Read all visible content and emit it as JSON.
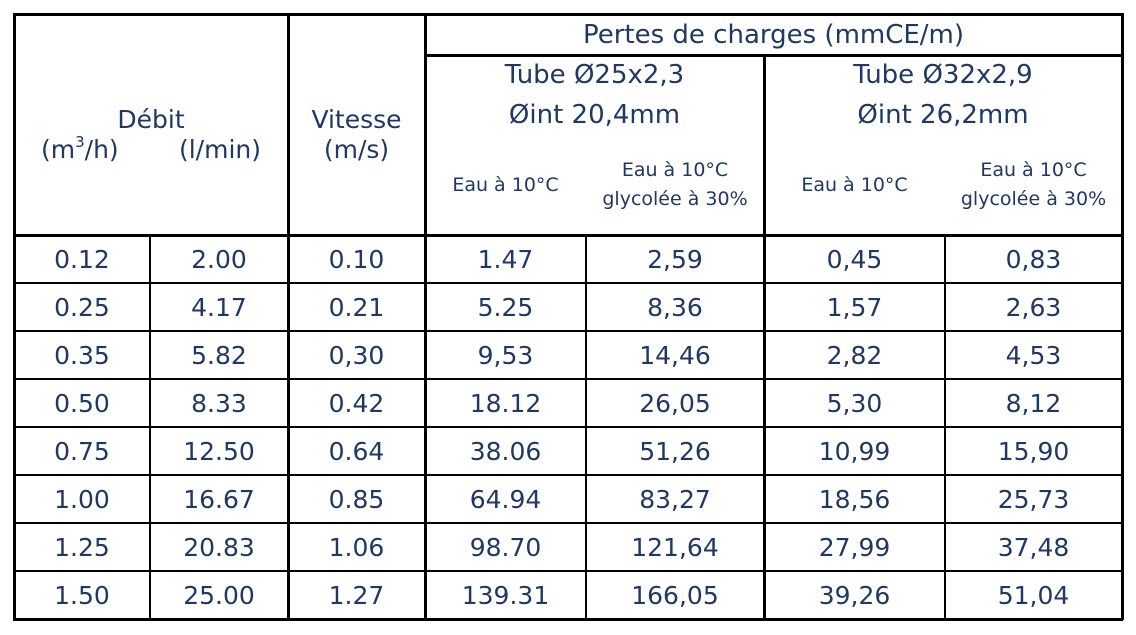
{
  "header": {
    "debit": {
      "label": "Débit",
      "unit_m3h_prefix": "(m",
      "unit_m3h_sup": "3",
      "unit_m3h_suffix": "/h)",
      "unit_lmin": "(l/min)"
    },
    "vitesse": {
      "label": "Vitesse",
      "unit": "(m/s)"
    },
    "pertes": "Pertes de charges (mmCE/m)",
    "tube1": {
      "line1": "Tube Ø25x2,3",
      "line2": "Øint 20,4mm"
    },
    "tube2": {
      "line1": "Tube Ø32x2,9",
      "line2": "Øint 26,2mm"
    },
    "eau": "Eau à 10°C",
    "eau_glycol_line1": "Eau à 10°C",
    "eau_glycol_line2": "glycolée à  30%"
  },
  "rows": [
    [
      "0.12",
      "2.00",
      "0.10",
      "1.47",
      "2,59",
      "0,45",
      "0,83"
    ],
    [
      "0.25",
      "4.17",
      "0.21",
      "5.25",
      "8,36",
      "1,57",
      "2,63"
    ],
    [
      "0.35",
      "5.82",
      "0,30",
      "9,53",
      "14,46",
      "2,82",
      "4,53"
    ],
    [
      "0.50",
      "8.33",
      "0.42",
      "18.12",
      "26,05",
      "5,30",
      "8,12"
    ],
    [
      "0.75",
      "12.50",
      "0.64",
      "38.06",
      "51,26",
      "10,99",
      "15,90"
    ],
    [
      "1.00",
      "16.67",
      "0.85",
      "64.94",
      "83,27",
      "18,56",
      "25,73"
    ],
    [
      "1.25",
      "20.83",
      "1.06",
      "98.70",
      "121,64",
      "27,99",
      "37,48"
    ],
    [
      "1.50",
      "25.00",
      "1.27",
      "139.31",
      "166,05",
      "39,26",
      "51,04"
    ]
  ],
  "colors": {
    "text": "#1f3864",
    "grid": "#000000",
    "background": "#ffffff"
  }
}
